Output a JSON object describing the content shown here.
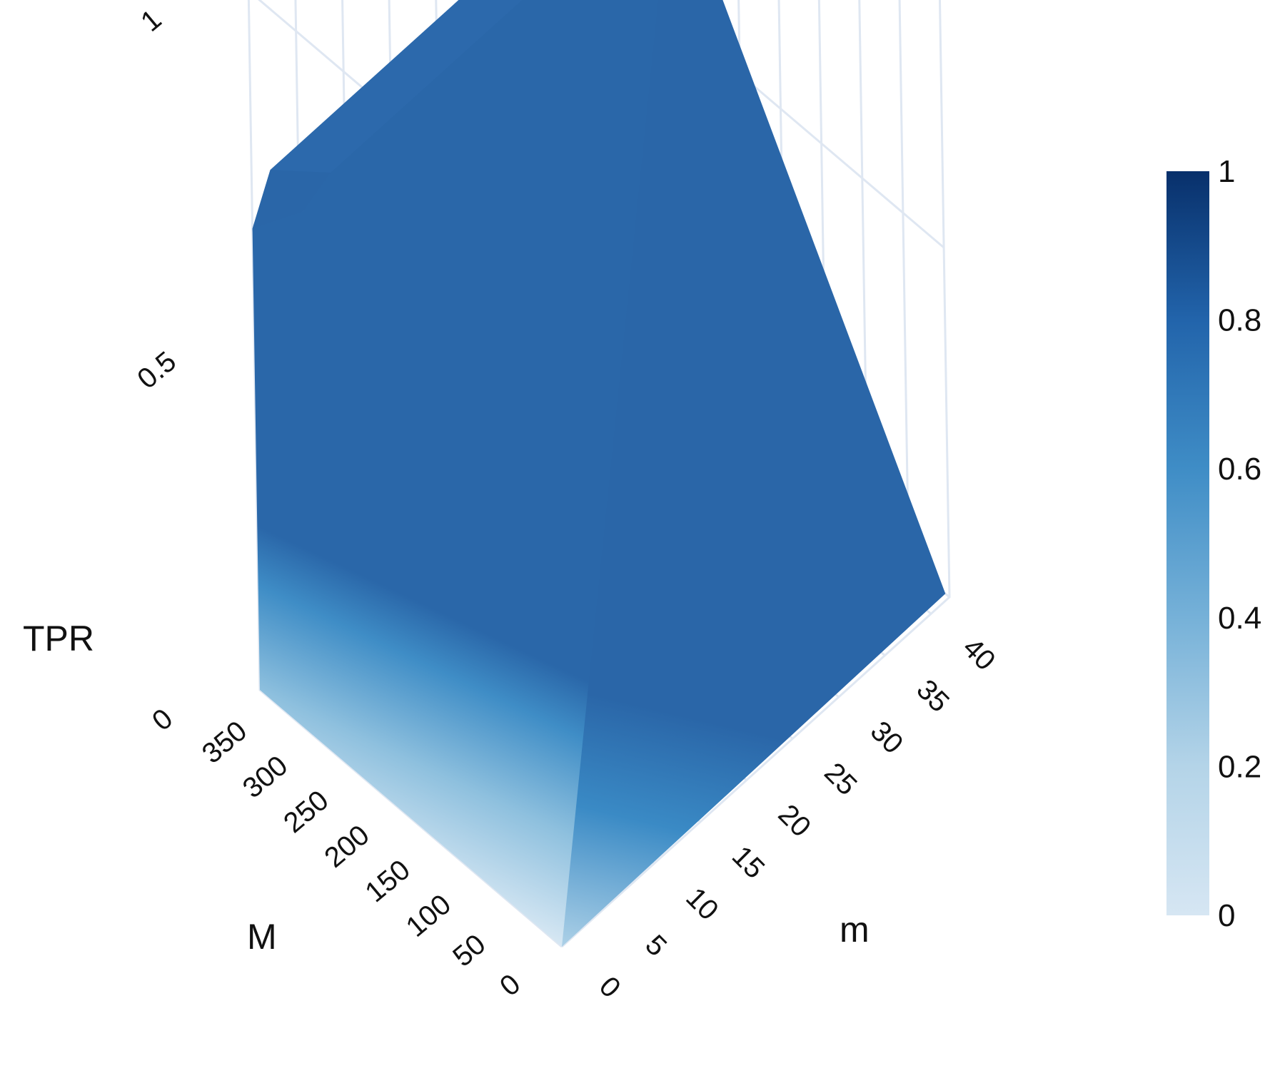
{
  "chart_data": {
    "type": "surface",
    "title": "",
    "axes": {
      "x": {
        "label": "m",
        "range": [
          0,
          42
        ],
        "ticks": [
          0,
          5,
          10,
          15,
          20,
          25,
          30,
          35,
          40
        ]
      },
      "y": {
        "label": "M",
        "range": [
          0,
          370
        ],
        "ticks": [
          0,
          50,
          100,
          150,
          200,
          250,
          300,
          350
        ]
      },
      "z": {
        "label": "TPR",
        "range": [
          0,
          1
        ],
        "ticks": [
          0,
          0.5,
          1
        ]
      }
    },
    "surface": {
      "m": [
        0,
        2,
        5,
        42
      ],
      "M": [
        0,
        330,
        370
      ],
      "TPR": [
        [
          0.0,
          0.0,
          0.0,
          0.0
        ],
        [
          0.0,
          0.7,
          0.72,
          0.72
        ],
        [
          0.0,
          0.72,
          0.72,
          0.72
        ]
      ]
    },
    "colorscale": {
      "name": "Blues",
      "range": [
        0,
        1
      ],
      "ticks": [
        0,
        0.2,
        0.4,
        0.6,
        0.8,
        1
      ],
      "colors": [
        "#d6e6f3",
        "#9ecae1",
        "#6baed6",
        "#4292c6",
        "#2170b4",
        "#08316b"
      ]
    },
    "grid": true,
    "legend": "colorbar-right"
  }
}
